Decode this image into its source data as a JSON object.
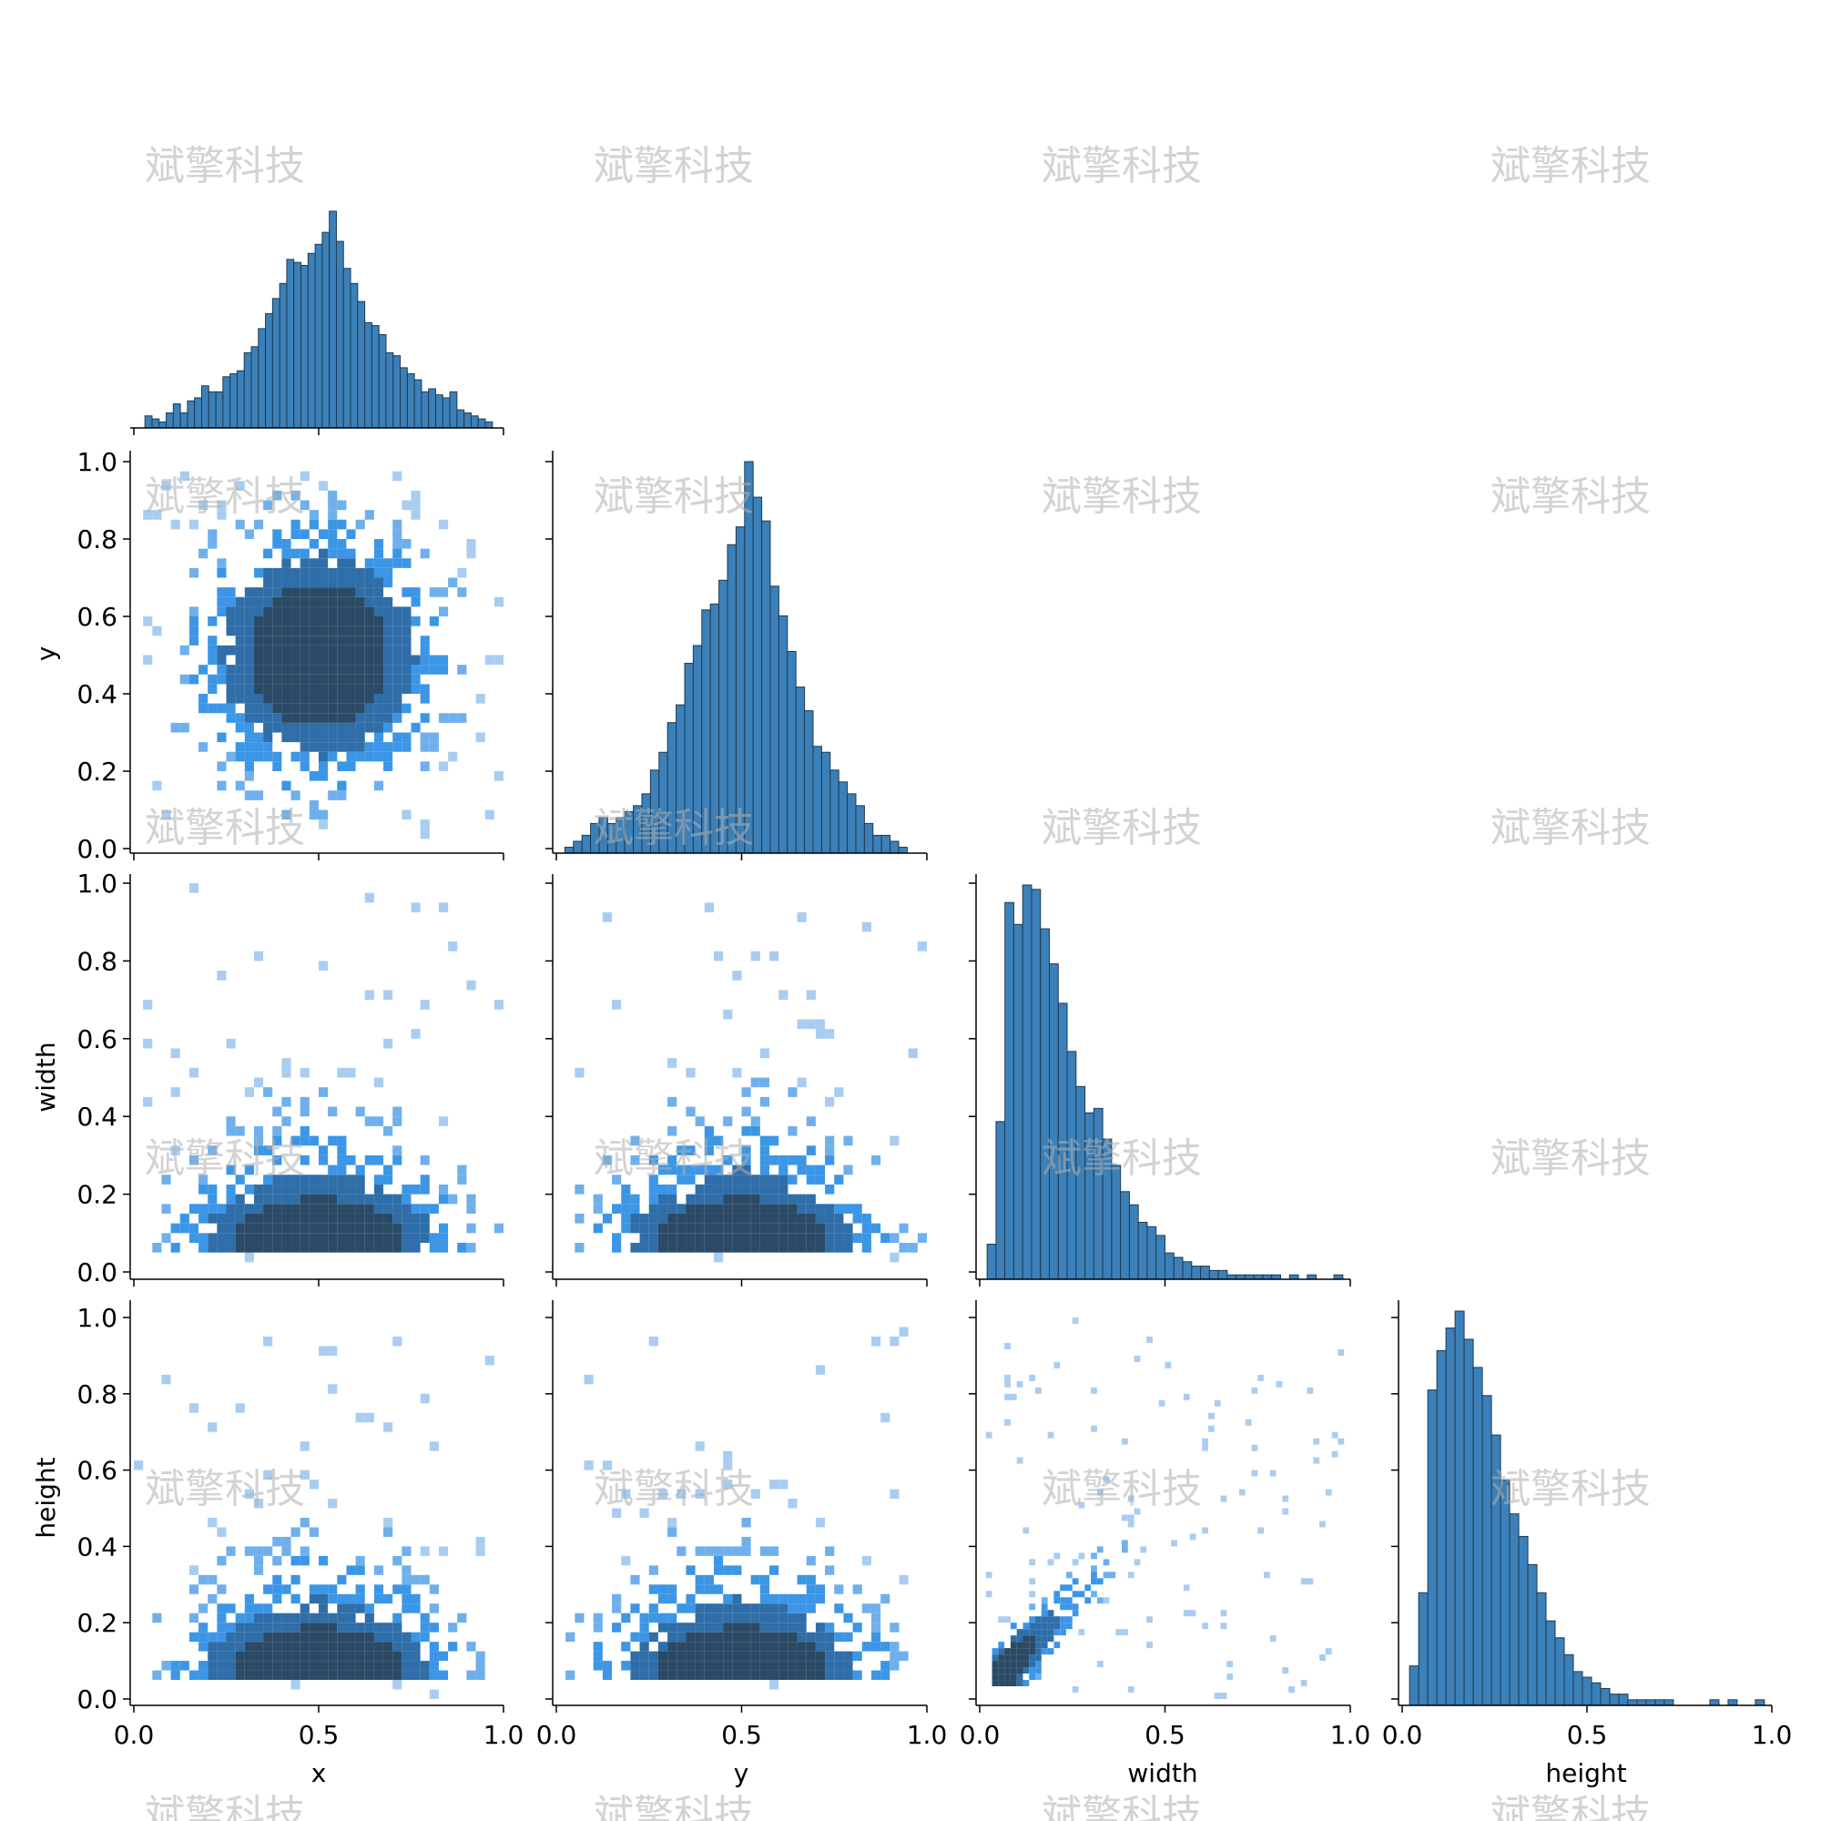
{
  "watermark": "斌擎科技",
  "chart_data": {
    "type": "pairplot",
    "layout": "lower-triangle (corner) grid, 4 x 4",
    "variables": [
      "x",
      "y",
      "width",
      "height"
    ],
    "axis_range": [
      0.0,
      1.0
    ],
    "tick_values": [
      0.0,
      0.2,
      0.4,
      0.6,
      0.8,
      1.0
    ],
    "x_tick_labels": [
      "0.0",
      "0.5",
      "1.0"
    ],
    "y_tick_labels": [
      "0.0",
      "0.2",
      "0.4",
      "0.6",
      "0.8",
      "1.0"
    ],
    "diagonal": "histogram",
    "off_diagonal": "2D histogram (heatmap)",
    "colors": {
      "hist_fill": "#3b80b8",
      "hist_edge": "#1f3a52",
      "heat_light": "#a9cdf1",
      "heat_mid": "#3c96e6",
      "heat_dark": "#2b4a66"
    },
    "marginals": {
      "x": {
        "distribution": "symmetric, peaked near 0.5",
        "bins_from": 0.03,
        "bins_to": 0.97,
        "heights": [
          4,
          3,
          2,
          5,
          8,
          5,
          9,
          10,
          14,
          12,
          12,
          17,
          18,
          19,
          25,
          27,
          33,
          38,
          43,
          48,
          56,
          55,
          54,
          58,
          61,
          65,
          72,
          62,
          53,
          48,
          42,
          35,
          34,
          31,
          25,
          24,
          20,
          18,
          16,
          12,
          13,
          11,
          10,
          12,
          6,
          5,
          4,
          3,
          2
        ]
      },
      "y": {
        "distribution": "symmetric, peaked near 0.5",
        "bins_from": 0.0,
        "bins_to": 0.97,
        "heights": [
          0,
          1,
          2,
          3,
          5,
          6,
          5,
          6,
          7,
          8,
          10,
          14,
          17,
          22,
          25,
          32,
          35,
          41,
          42,
          46,
          52,
          55,
          66,
          60,
          56,
          45,
          40,
          34,
          28,
          24,
          18,
          17,
          14,
          12,
          10,
          8,
          5,
          3,
          3,
          2,
          1,
          0
        ]
      },
      "width": {
        "distribution": "right-skewed, peak near 0.1",
        "bins_from": 0.02,
        "bins_to": 0.98,
        "heights": [
          8,
          36,
          86,
          81,
          90,
          89,
          80,
          72,
          63,
          52,
          44,
          38,
          39,
          32,
          26,
          20,
          17,
          13,
          12,
          10,
          6,
          5,
          4,
          3,
          3,
          2,
          2,
          1,
          1,
          1,
          1,
          1,
          1,
          0,
          1,
          0,
          1,
          0,
          0,
          1
        ]
      },
      "height": {
        "distribution": "right-skewed, peak near 0.1",
        "bins_from": 0.02,
        "bins_to": 0.98,
        "heights": [
          7,
          20,
          56,
          63,
          67,
          70,
          65,
          60,
          55,
          48,
          40,
          34,
          30,
          25,
          20,
          15,
          12,
          9,
          6,
          5,
          4,
          3,
          2,
          2,
          1,
          1,
          1,
          1,
          1,
          0,
          0,
          0,
          0,
          1,
          0,
          1,
          0,
          0,
          1
        ]
      }
    },
    "joint": [
      {
        "x": "x",
        "y": "y",
        "relation": "independent, dense core near (0.5, 0.5)"
      },
      {
        "x": "x",
        "y": "width",
        "relation": "triangular, dense near (0.5, 0.1)"
      },
      {
        "x": "y",
        "y": "width",
        "relation": "triangular, dense near (0.5, 0.1)"
      },
      {
        "x": "x",
        "y": "height",
        "relation": "triangular, dense near (0.5, 0.1)"
      },
      {
        "x": "y",
        "y": "height",
        "relation": "triangular, dense near (0.5, 0.1)"
      },
      {
        "x": "width",
        "y": "height",
        "relation": "positive correlation along diagonal, dense near (0.1, 0.1)"
      }
    ]
  }
}
